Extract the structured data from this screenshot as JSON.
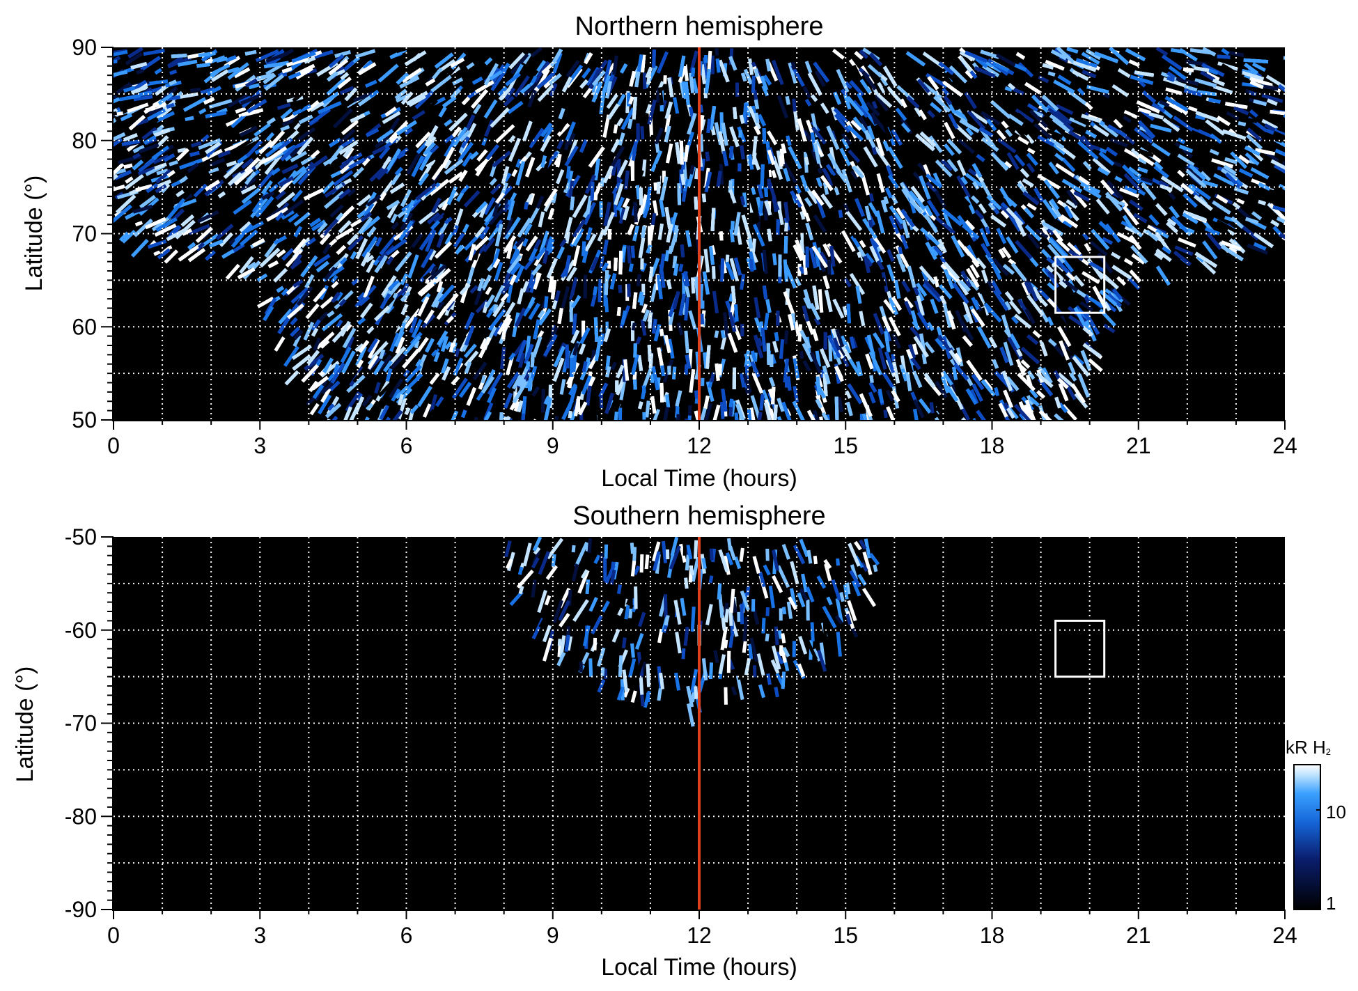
{
  "chart_data": [
    {
      "type": "heatmap",
      "title": "Northern hemisphere",
      "xlabel": "Local Time (hours)",
      "ylabel": "Latitude (°)",
      "xlim": [
        0,
        24
      ],
      "ylim": [
        50,
        90
      ],
      "x_ticks": [
        0,
        3,
        6,
        9,
        12,
        15,
        18,
        21,
        24
      ],
      "y_ticks": [
        50,
        60,
        70,
        80,
        90
      ],
      "grid": true,
      "grid_x_step": 1,
      "grid_y_step": 5,
      "noon_line_x": 12,
      "highlight_box": {
        "x0": 19.3,
        "x1": 20.3,
        "y0": 61.5,
        "y1": 67.5
      },
      "coverage": {
        "description": "observed emission region",
        "pole_boundary": [
          [
            0,
            69.5
          ],
          [
            3,
            66
          ],
          [
            4,
            50
          ],
          [
            8,
            50
          ],
          [
            16,
            50
          ],
          [
            19.5,
            50
          ],
          [
            21,
            66
          ],
          [
            24,
            69.5
          ]
        ]
      }
    },
    {
      "type": "heatmap",
      "title": "Southern hemisphere",
      "xlabel": "Local Time (hours)",
      "ylabel": "Latitude (°)",
      "xlim": [
        0,
        24
      ],
      "ylim": [
        -90,
        -50
      ],
      "x_ticks": [
        0,
        3,
        6,
        9,
        12,
        15,
        18,
        21,
        24
      ],
      "y_ticks": [
        -50,
        -60,
        -70,
        -80,
        -90
      ],
      "grid": true,
      "grid_x_step": 1,
      "grid_y_step": 5,
      "noon_line_x": 12,
      "highlight_box": {
        "x0": 19.3,
        "x1": 20.3,
        "y0": -65,
        "y1": -59
      },
      "coverage": {
        "description": "observed emission region (dayside cap)",
        "x_range": [
          8.1,
          15.7
        ],
        "lowest_latitude": -68
      }
    }
  ],
  "colorbar": {
    "label": "kR H",
    "label_sub": "2",
    "scale": "log",
    "ticks": [
      "10",
      "1"
    ],
    "range": [
      1,
      30
    ],
    "colors": [
      "#000000",
      "#0a1e6e",
      "#1565d8",
      "#3aa0ff",
      "#bfe3ff",
      "#ffffff"
    ]
  },
  "colors": {
    "noon_line": "#e0401a",
    "grid": "#ffffff",
    "box": "#ffffff",
    "background": "#000000"
  }
}
